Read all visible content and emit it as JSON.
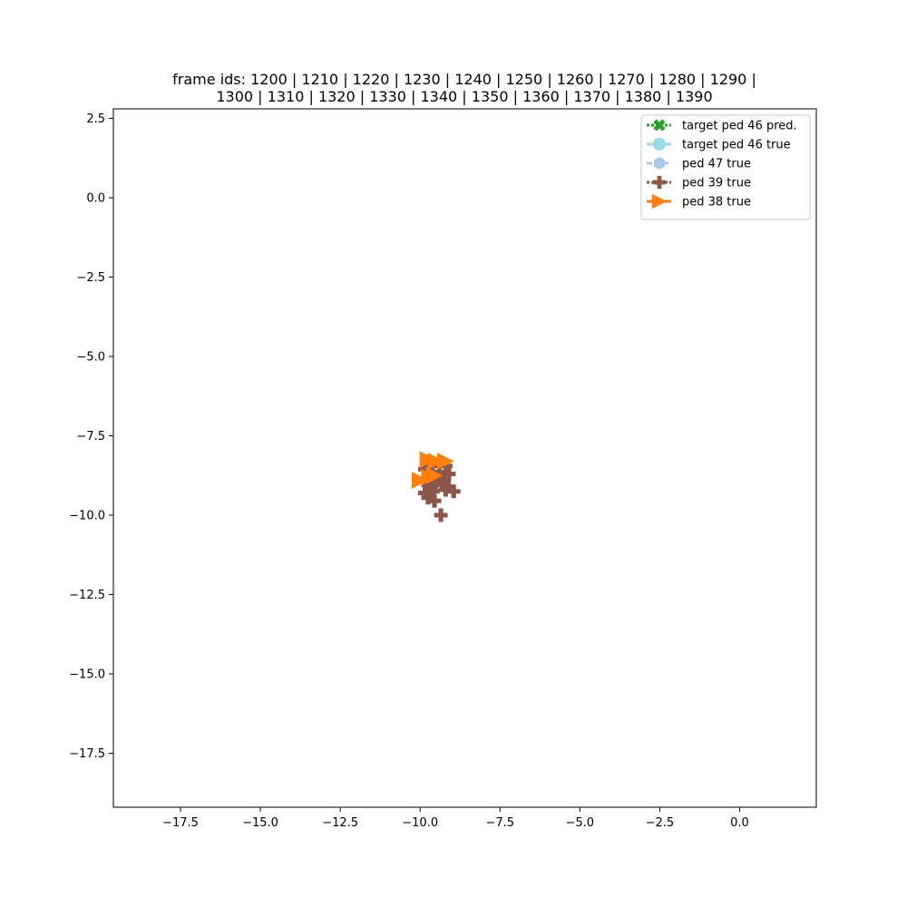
{
  "chart_data": {
    "type": "scatter",
    "title_lines": [
      "frame ids: 1200 | 1210 | 1220 | 1230 | 1240 | 1250 | 1260 | 1270 | 1280 | 1290 |",
      "1300 | 1310 | 1320 | 1330 | 1340 | 1350 | 1360 | 1370 | 1380 | 1390"
    ],
    "xlabel": "",
    "ylabel": "",
    "xlim": [
      -19.6,
      2.4
    ],
    "ylim": [
      -19.2,
      2.8
    ],
    "x_ticks": [
      -17.5,
      -15.0,
      -12.5,
      -10.0,
      -7.5,
      -5.0,
      -2.5,
      0.0
    ],
    "x_tick_labels": [
      "−17.5",
      "−15.0",
      "−12.5",
      "−10.0",
      "−7.5",
      "−5.0",
      "−2.5",
      "0.0"
    ],
    "y_ticks": [
      2.5,
      0.0,
      -2.5,
      -5.0,
      -7.5,
      -10.0,
      -12.5,
      -15.0,
      -17.5
    ],
    "y_tick_labels": [
      "2.5",
      "0.0",
      "−2.5",
      "−5.0",
      "−7.5",
      "−10.0",
      "−12.5",
      "−15.0",
      "−17.5"
    ],
    "grid": false,
    "legend_position": "top-right",
    "series": [
      {
        "name": "target ped 46 pred.",
        "color": "#2ca02c",
        "marker": "x-filled",
        "linestyle": "dotted",
        "points": []
      },
      {
        "name": "target ped 46 true",
        "color": "#9edae5",
        "marker": "circle",
        "linestyle": "solid",
        "points": []
      },
      {
        "name": "ped 47 true",
        "color": "#aec7e8",
        "marker": "hexagon",
        "linestyle": "dashed",
        "points": []
      },
      {
        "name": "ped 39 true",
        "color": "#8c564b",
        "marker": "plus-filled",
        "linestyle": "dotted",
        "points": [
          [
            -9.35,
            -10.0
          ],
          [
            -9.55,
            -9.55
          ],
          [
            -9.75,
            -9.45
          ],
          [
            -9.85,
            -9.3
          ],
          [
            -9.7,
            -9.15
          ],
          [
            -9.55,
            -9.0
          ],
          [
            -9.35,
            -8.9
          ],
          [
            -9.6,
            -8.75
          ],
          [
            -9.85,
            -8.55
          ],
          [
            -9.65,
            -8.45
          ],
          [
            -9.4,
            -8.65
          ],
          [
            -9.2,
            -8.45
          ],
          [
            -9.1,
            -8.7
          ],
          [
            -9.25,
            -8.95
          ],
          [
            -9.15,
            -9.1
          ],
          [
            -8.95,
            -9.25
          ],
          [
            -9.2,
            -9.2
          ],
          [
            -9.5,
            -8.95
          ],
          [
            -9.75,
            -9.05
          ],
          [
            -9.6,
            -9.25
          ]
        ]
      },
      {
        "name": "ped 38 true",
        "color": "#ff7f0e",
        "marker": "triangle-right",
        "linestyle": "solid",
        "points": [
          [
            -10.0,
            -8.9
          ],
          [
            -9.7,
            -8.8
          ],
          [
            -9.55,
            -8.75
          ],
          [
            -9.75,
            -8.25
          ],
          [
            -9.5,
            -8.3
          ],
          [
            -9.2,
            -8.3
          ]
        ]
      }
    ]
  }
}
